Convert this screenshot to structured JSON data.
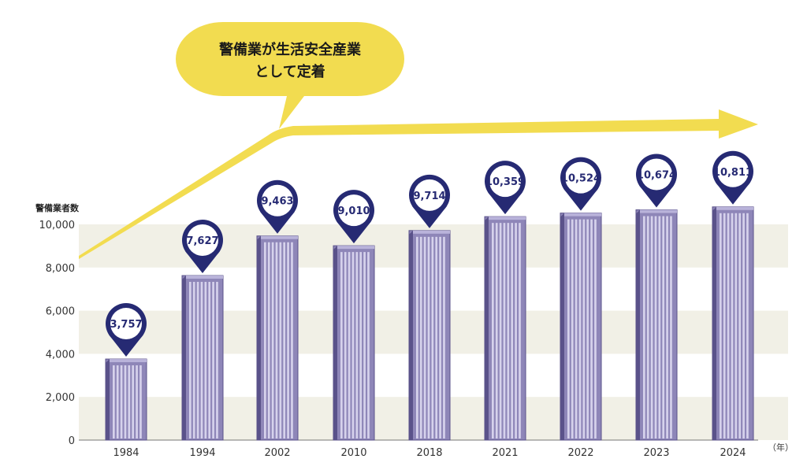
{
  "chart_data": {
    "type": "bar",
    "categories": [
      "1984",
      "1994",
      "2002",
      "2010",
      "2018",
      "2021",
      "2022",
      "2023",
      "2024"
    ],
    "values": [
      3757,
      7627,
      9463,
      9010,
      9714,
      10359,
      10524,
      10674,
      10811
    ],
    "value_labels": [
      "3,757",
      "7,627",
      "9,463",
      "9,010",
      "9,714",
      "10,359",
      "10,524",
      "10,674",
      "10,811"
    ],
    "ylabel": "警備業者数",
    "x_unit": "（年）",
    "ylim": [
      0,
      10000
    ],
    "yticks": [
      0,
      2000,
      4000,
      6000,
      8000,
      10000
    ],
    "ytick_labels": [
      "0",
      "2,000",
      "4,000",
      "6,000",
      "8,000",
      "10,000"
    ],
    "annotation": {
      "line1": "警備業が生活安全産業",
      "line2": "として定着"
    },
    "colors": {
      "bar": "#8e86b8",
      "bar_light": "#d6d2ec",
      "bar_dark": "#5a528a",
      "pin": "#262a73",
      "band": "#f1f0e6",
      "accent": "#f2dc50"
    }
  }
}
